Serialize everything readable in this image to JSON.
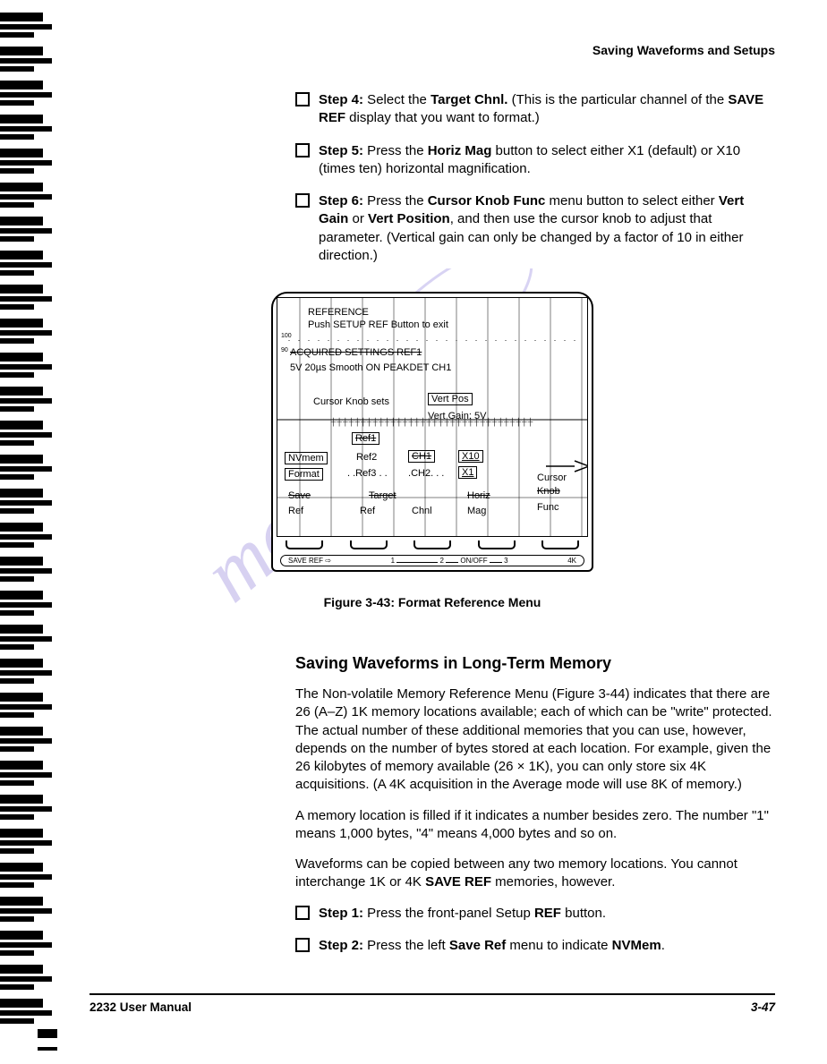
{
  "colors": {
    "text": "#000000",
    "background": "#ffffff",
    "watermark": "#8b7cd8",
    "watermark2": "#9a8de0"
  },
  "header": {
    "title": "Saving Waveforms and Setups"
  },
  "steps_a": [
    {
      "label": "Step 4:",
      "bold1": "Target Chnl.",
      "bold2": "SAVE REF",
      "text_before": " Select the ",
      "text_mid": " (This is the particular channel of the ",
      "text_after": " display that you want to format.)"
    },
    {
      "label": "Step 5:",
      "bold1": "Horiz Mag",
      "text_before": " Press the ",
      "text_after": " button to select either X1 (default) or X10 (times ten) horizontal magnification."
    },
    {
      "label": "Step 6:",
      "bold1": "Cursor Knob Func",
      "bold2": "Vert Gain",
      "bold3": "Vert Position",
      "text_before": " Press the ",
      "text_mid1": " menu button to select either ",
      "text_mid2": " or ",
      "text_after": ", and then use the cursor knob to adjust that parameter. (Vertical gain can only be changed by a factor of 10 in either direction.)"
    }
  ],
  "scope": {
    "line1": "REFERENCE",
    "line2": "Push SETUP REF Button to exit",
    "lbl_100": "100",
    "lbl_90": "90",
    "acq": "ACQUIRED SETTINGS REF1",
    "settings": "5V 20µs Smooth ON PEAKDET CH1",
    "knob": "Cursor Knob sets",
    "vertpos": "Vert Pos",
    "vertgain": "Vert Gain: 5V",
    "ref1": "Ref1",
    "nvmem": "NVmem",
    "ref2": "Ref2",
    "ch1": "CH1",
    "x10": "X10",
    "format": "Format",
    "ref3": "Ref3",
    "ch2": "CH2",
    "x1": "X1",
    "cursor": "Cursor",
    "knob2": "Knob",
    "func": "Func",
    "save": "Save",
    "target": "Target",
    "horiz": "Horiz",
    "ref_b": "Ref",
    "ref_b2": "Ref",
    "chnl": "Chnl",
    "mag": "Mag",
    "label_bar": {
      "save_ref": "SAVE REF ⇨",
      "n1": "1",
      "n2": "2",
      "onoff": "ON/OFF",
      "n3": "3",
      "k4": "4K"
    }
  },
  "caption": "Figure 3-43:  Format Reference Menu",
  "section_heading": "Saving Waveforms in Long-Term Memory",
  "paras": [
    "The Non-volatile Memory Reference Menu (Figure 3-44) indicates that there are 26 (A–Z) 1K memory locations available; each of which can be \"write\" protected. The actual number of these additional memories that you can use, however, depends on the number of bytes stored at each location. For example, given the 26 kilobytes of memory available (26 × 1K), you can only store six 4K acquisitions. (A 4K acquisition in the Average mode will use 8K of memory.)",
    "A memory location is filled if it indicates a number besides zero. The number \"1\" means 1,000 bytes, \"4\" means 4,000 bytes and so on."
  ],
  "para_saveref": {
    "pre": "Waveforms can be copied between any two memory locations. You cannot interchange 1K or 4K ",
    "bold": "SAVE REF",
    "post": " memories, however."
  },
  "steps_b": [
    {
      "label": "Step 1:",
      "pre": " Press the front-panel Setup ",
      "bold": "REF",
      "post": " button."
    },
    {
      "label": "Step 2:",
      "pre": " Press the left ",
      "bold1": "Save Ref",
      "mid": " menu to indicate ",
      "bold2": "NVMem",
      "post": "."
    }
  ],
  "footer": {
    "manual": "2232 User Manual",
    "page": "3-47"
  },
  "binding": {
    "count": 30
  }
}
